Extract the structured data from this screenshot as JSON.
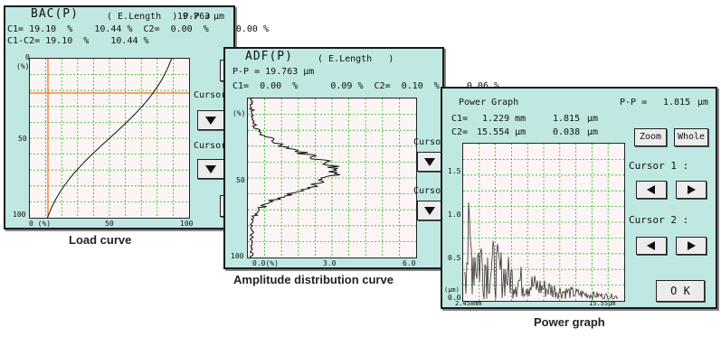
{
  "bac": {
    "title": "BAC(P)",
    "mode": "( E.Length  ) P-P =",
    "pp_value": "19.763",
    "unit": "µm",
    "line1": "C1= 19.10  %    10.44 %  C2=  0.00  %     0.00 %",
    "line2": "C1-C2= 19.10  %    10.44 %",
    "y_axis_unit": "(%)",
    "y_ticks": [
      "0",
      "50",
      "100"
    ],
    "x_ticks": [
      "0 (%)",
      "50",
      "100"
    ],
    "cursor1_label": "Cursor",
    "cursor2_label": "Cursor",
    "caption": "Load curve"
  },
  "adf": {
    "title": "ADF(P)",
    "mode": "( E.Length   )",
    "pp_line": "P-P = 19.763 µm",
    "line1": "C1=  0.00  %      0.09 %  C2=  0.10  %     0.06 %",
    "y_axis_unit": "(%)",
    "y_ticks": [
      "50",
      "100"
    ],
    "x_ticks": [
      "0.0(%)",
      "3.0",
      "6.0"
    ],
    "cursor1_label": "Cursor",
    "cursor2_label": "Cursor",
    "caption": "Amplitude distribution curve"
  },
  "power": {
    "title": "Power Graph",
    "pp_label": "P-P =",
    "pp_value": "1.815",
    "unit": "µm",
    "c1_label": "C1=",
    "c1_pos": "1.229 mm",
    "c1_val": "1.815",
    "c2_label": "C2=",
    "c2_pos": "15.554 µm",
    "c2_val": "0.038",
    "y_ticks": [
      "1.5",
      "1.0",
      "0.5",
      "0.0"
    ],
    "y_unit": "(µm)",
    "x_start": "2.458mm",
    "x_end": "15.55µm",
    "zoom_label": "Zoom",
    "whole_label": "Whole",
    "cursor1_label": "Cursor 1 :",
    "cursor2_label": "Cursor 2 :",
    "ok_label": "O K",
    "caption": "Power graph"
  },
  "colors": {
    "panel": "#bfe8e2",
    "grid": "#22bb22",
    "cursor": "#ff6a1a",
    "curve": "#111111"
  }
}
